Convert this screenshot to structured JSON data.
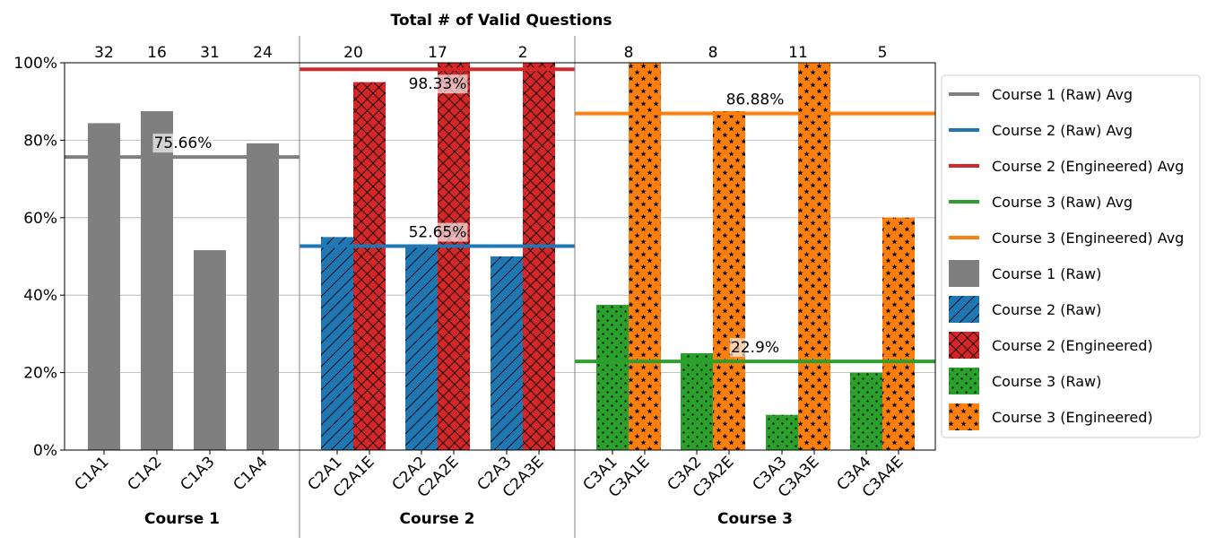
{
  "chart_data": {
    "type": "bar",
    "title": "Total # of Valid Questions",
    "ylim": [
      0,
      100
    ],
    "yticks": [
      "0%",
      "20%",
      "40%",
      "60%",
      "80%",
      "100%"
    ],
    "grid": true,
    "legend_position": "right",
    "colors": {
      "raw1": "#7f7f7f",
      "raw2": "#1f77b4",
      "eng2": "#d62728",
      "raw3": "#2ca02c",
      "eng3": "#ff7f0e"
    },
    "groups": [
      {
        "label": "Course 1",
        "pairs": [
          {
            "count": "32",
            "bars": [
              {
                "label": "C1A1",
                "value": 84.4,
                "kind": "raw1"
              }
            ]
          },
          {
            "count": "16",
            "bars": [
              {
                "label": "C1A2",
                "value": 87.5,
                "kind": "raw1"
              }
            ]
          },
          {
            "count": "31",
            "bars": [
              {
                "label": "C1A3",
                "value": 51.6,
                "kind": "raw1"
              }
            ]
          },
          {
            "count": "24",
            "bars": [
              {
                "label": "C1A4",
                "value": 79.2,
                "kind": "raw1"
              }
            ]
          }
        ],
        "averages": [
          {
            "value": 75.66,
            "label": "75.66%",
            "kind": "raw1"
          }
        ]
      },
      {
        "label": "Course 2",
        "pairs": [
          {
            "count": "20",
            "bars": [
              {
                "label": "C2A1",
                "value": 55.0,
                "kind": "raw2"
              },
              {
                "label": "C2A1E",
                "value": 95.0,
                "kind": "eng2"
              }
            ]
          },
          {
            "count": "17",
            "bars": [
              {
                "label": "C2A2",
                "value": 52.9,
                "kind": "raw2"
              },
              {
                "label": "C2A2E",
                "value": 100.0,
                "kind": "eng2"
              }
            ]
          },
          {
            "count": "2",
            "bars": [
              {
                "label": "C2A3",
                "value": 50.0,
                "kind": "raw2"
              },
              {
                "label": "C2A3E",
                "value": 100.0,
                "kind": "eng2"
              }
            ]
          }
        ],
        "averages": [
          {
            "value": 52.65,
            "label": "52.65%",
            "kind": "raw2"
          },
          {
            "value": 98.33,
            "label": "98.33%",
            "kind": "eng2"
          }
        ]
      },
      {
        "label": "Course 3",
        "pairs": [
          {
            "count": "8",
            "bars": [
              {
                "label": "C3A1",
                "value": 37.5,
                "kind": "raw3"
              },
              {
                "label": "C3A1E",
                "value": 100.0,
                "kind": "eng3"
              }
            ]
          },
          {
            "count": "8",
            "bars": [
              {
                "label": "C3A2",
                "value": 25.0,
                "kind": "raw3"
              },
              {
                "label": "C3A2E",
                "value": 87.5,
                "kind": "eng3"
              }
            ]
          },
          {
            "count": "11",
            "bars": [
              {
                "label": "C3A3",
                "value": 9.1,
                "kind": "raw3"
              },
              {
                "label": "C3A3E",
                "value": 100.0,
                "kind": "eng3"
              }
            ]
          },
          {
            "count": "5",
            "bars": [
              {
                "label": "C3A4",
                "value": 20.0,
                "kind": "raw3"
              },
              {
                "label": "C3A4E",
                "value": 60.0,
                "kind": "eng3"
              }
            ]
          }
        ],
        "averages": [
          {
            "value": 22.9,
            "label": "22.9%",
            "kind": "raw3"
          },
          {
            "value": 86.88,
            "label": "86.88%",
            "kind": "eng3"
          }
        ]
      }
    ],
    "legend": [
      {
        "label": "Course 1 (Raw) Avg",
        "kind": "raw1",
        "symbol": "line"
      },
      {
        "label": "Course 2 (Raw) Avg",
        "kind": "raw2",
        "symbol": "line"
      },
      {
        "label": "Course 2 (Engineered) Avg",
        "kind": "eng2",
        "symbol": "line"
      },
      {
        "label": "Course 3 (Raw) Avg",
        "kind": "raw3",
        "symbol": "line"
      },
      {
        "label": "Course 3 (Engineered) Avg",
        "kind": "eng3",
        "symbol": "line"
      },
      {
        "label": "Course 1 (Raw)",
        "kind": "raw1",
        "symbol": "patch"
      },
      {
        "label": "Course 2 (Raw)",
        "kind": "raw2",
        "symbol": "patch"
      },
      {
        "label": "Course 2 (Engineered)",
        "kind": "eng2",
        "symbol": "patch"
      },
      {
        "label": "Course 3 (Raw)",
        "kind": "raw3",
        "symbol": "patch"
      },
      {
        "label": "Course 3 (Engineered)",
        "kind": "eng3",
        "symbol": "patch"
      }
    ]
  }
}
